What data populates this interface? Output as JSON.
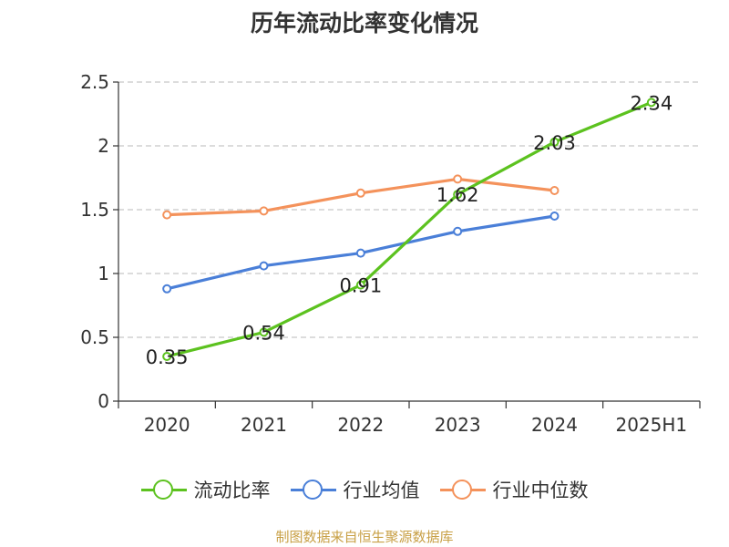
{
  "chart_data": {
    "type": "line",
    "title": "历年流动比率变化情况",
    "categories": [
      "2020",
      "2021",
      "2022",
      "2023",
      "2024",
      "2025H1"
    ],
    "ylim": [
      0,
      2.5
    ],
    "yticks": [
      "0",
      "0.5",
      "1",
      "1.5",
      "2",
      "2.5"
    ],
    "grid": true,
    "legend_position": "bottom",
    "series": [
      {
        "name": "流动比率",
        "color": "#5cc21f",
        "values": [
          0.35,
          0.54,
          0.91,
          1.62,
          2.03,
          2.34
        ],
        "labels": [
          "0.35",
          "0.54",
          "0.91",
          "1.62",
          "2.03",
          "2.34"
        ]
      },
      {
        "name": "行业均值",
        "color": "#4a7fd8",
        "values": [
          0.88,
          1.06,
          1.16,
          1.33,
          1.45,
          null
        ]
      },
      {
        "name": "行业中位数",
        "color": "#f4925b",
        "values": [
          1.46,
          1.49,
          1.63,
          1.74,
          1.65,
          null
        ]
      }
    ]
  },
  "footer": "制图数据来自恒生聚源数据库"
}
